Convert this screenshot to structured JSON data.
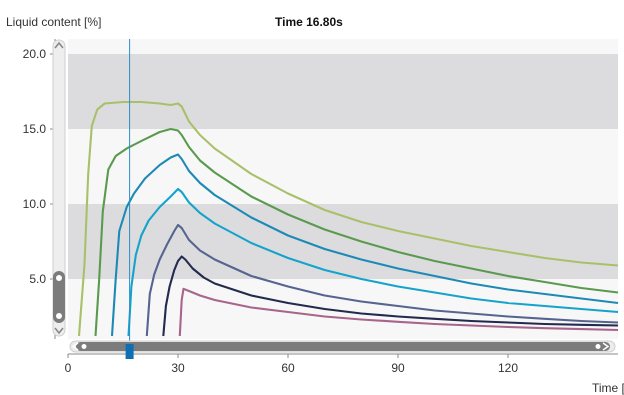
{
  "chart_data": {
    "type": "line",
    "title": "Time 16.80s",
    "ylabel": "Liquid content [%]",
    "xlabel": "Time [",
    "xlim": [
      0,
      150
    ],
    "ylim": [
      1.0,
      21.0
    ],
    "x_ticks": [
      0,
      30,
      60,
      90,
      120
    ],
    "y_ticks": [
      5.0,
      10.0,
      15.0,
      20.0
    ],
    "y_tick_labels": [
      "5.0",
      "10.0",
      "15.0",
      "20.0"
    ],
    "cursor_x": 16.8,
    "grid_bands": [
      [
        5,
        10
      ],
      [
        15,
        20
      ]
    ],
    "series": [
      {
        "color": "#a9c06a",
        "points": [
          [
            3,
            1.2
          ],
          [
            4.5,
            6
          ],
          [
            5.5,
            12
          ],
          [
            6.5,
            15.2
          ],
          [
            8,
            16.3
          ],
          [
            10,
            16.7
          ],
          [
            15,
            16.8
          ],
          [
            20,
            16.8
          ],
          [
            25,
            16.7
          ],
          [
            28,
            16.6
          ],
          [
            30,
            16.7
          ],
          [
            31,
            16.5
          ],
          [
            33,
            15.5
          ],
          [
            36,
            14.6
          ],
          [
            40,
            13.7
          ],
          [
            50,
            12.0
          ],
          [
            60,
            10.7
          ],
          [
            70,
            9.6
          ],
          [
            80,
            8.8
          ],
          [
            90,
            8.2
          ],
          [
            100,
            7.7
          ],
          [
            110,
            7.2
          ],
          [
            120,
            6.8
          ],
          [
            130,
            6.4
          ],
          [
            140,
            6.1
          ],
          [
            150,
            5.9
          ]
        ]
      },
      {
        "color": "#5a9a4e",
        "points": [
          [
            7.5,
            1.2
          ],
          [
            8.5,
            5
          ],
          [
            9.5,
            9.5
          ],
          [
            11,
            12.3
          ],
          [
            13,
            13.2
          ],
          [
            16,
            13.7
          ],
          [
            20,
            14.2
          ],
          [
            25,
            14.8
          ],
          [
            28,
            15.0
          ],
          [
            30,
            14.9
          ],
          [
            31,
            14.6
          ],
          [
            33,
            13.8
          ],
          [
            36,
            12.9
          ],
          [
            40,
            12.1
          ],
          [
            50,
            10.5
          ],
          [
            60,
            9.3
          ],
          [
            70,
            8.3
          ],
          [
            80,
            7.5
          ],
          [
            90,
            6.8
          ],
          [
            100,
            6.2
          ],
          [
            110,
            5.7
          ],
          [
            120,
            5.2
          ],
          [
            130,
            4.8
          ],
          [
            140,
            4.4
          ],
          [
            150,
            4.1
          ]
        ]
      },
      {
        "color": "#1d8ab5",
        "points": [
          [
            12,
            1.2
          ],
          [
            13,
            5
          ],
          [
            14,
            8.2
          ],
          [
            16,
            9.8
          ],
          [
            18,
            10.7
          ],
          [
            21,
            11.7
          ],
          [
            25,
            12.6
          ],
          [
            28,
            13.1
          ],
          [
            30,
            13.3
          ],
          [
            31,
            13.0
          ],
          [
            33,
            12.2
          ],
          [
            36,
            11.4
          ],
          [
            40,
            10.6
          ],
          [
            50,
            9.1
          ],
          [
            60,
            7.9
          ],
          [
            70,
            7.0
          ],
          [
            80,
            6.3
          ],
          [
            90,
            5.7
          ],
          [
            100,
            5.2
          ],
          [
            110,
            4.7
          ],
          [
            120,
            4.3
          ],
          [
            130,
            4.0
          ],
          [
            140,
            3.7
          ],
          [
            150,
            3.4
          ]
        ]
      },
      {
        "color": "#15a3cc",
        "points": [
          [
            16.5,
            1.2
          ],
          [
            17.3,
            4.5
          ],
          [
            18.5,
            6.6
          ],
          [
            20,
            7.9
          ],
          [
            22,
            8.9
          ],
          [
            25,
            9.8
          ],
          [
            28,
            10.5
          ],
          [
            30,
            11.0
          ],
          [
            31,
            10.8
          ],
          [
            33,
            10.1
          ],
          [
            36,
            9.4
          ],
          [
            40,
            8.7
          ],
          [
            50,
            7.4
          ],
          [
            60,
            6.4
          ],
          [
            70,
            5.6
          ],
          [
            80,
            5.0
          ],
          [
            90,
            4.5
          ],
          [
            100,
            4.1
          ],
          [
            110,
            3.7
          ],
          [
            120,
            3.4
          ],
          [
            130,
            3.2
          ],
          [
            140,
            3.0
          ],
          [
            150,
            2.8
          ]
        ]
      },
      {
        "color": "#55658f",
        "points": [
          [
            21.5,
            1.2
          ],
          [
            22.3,
            4.0
          ],
          [
            23.5,
            5.3
          ],
          [
            25,
            6.3
          ],
          [
            27,
            7.3
          ],
          [
            29,
            8.2
          ],
          [
            30,
            8.6
          ],
          [
            31,
            8.4
          ],
          [
            33,
            7.6
          ],
          [
            36,
            6.9
          ],
          [
            40,
            6.3
          ],
          [
            50,
            5.2
          ],
          [
            60,
            4.5
          ],
          [
            70,
            3.9
          ],
          [
            80,
            3.5
          ],
          [
            90,
            3.2
          ],
          [
            100,
            2.9
          ],
          [
            110,
            2.7
          ],
          [
            120,
            2.5
          ],
          [
            130,
            2.35
          ],
          [
            140,
            2.2
          ],
          [
            150,
            2.1
          ]
        ]
      },
      {
        "color": "#222a4d",
        "points": [
          [
            26,
            1.2
          ],
          [
            26.7,
            3.2
          ],
          [
            27.7,
            4.5
          ],
          [
            29,
            5.6
          ],
          [
            30,
            6.2
          ],
          [
            31,
            6.5
          ],
          [
            32,
            6.3
          ],
          [
            34,
            5.7
          ],
          [
            37,
            5.1
          ],
          [
            40,
            4.7
          ],
          [
            50,
            3.9
          ],
          [
            60,
            3.4
          ],
          [
            70,
            3.0
          ],
          [
            80,
            2.7
          ],
          [
            90,
            2.5
          ],
          [
            100,
            2.35
          ],
          [
            110,
            2.2
          ],
          [
            120,
            2.1
          ],
          [
            130,
            2.0
          ],
          [
            140,
            1.95
          ],
          [
            150,
            1.9
          ]
        ]
      },
      {
        "color": "#a8648a",
        "points": [
          [
            30.5,
            1.2
          ],
          [
            31,
            3.6
          ],
          [
            31.5,
            4.35
          ],
          [
            33,
            4.2
          ],
          [
            36,
            3.9
          ],
          [
            40,
            3.6
          ],
          [
            50,
            3.1
          ],
          [
            60,
            2.8
          ],
          [
            70,
            2.5
          ],
          [
            80,
            2.3
          ],
          [
            90,
            2.15
          ],
          [
            100,
            2.0
          ],
          [
            110,
            1.9
          ],
          [
            120,
            1.8
          ],
          [
            130,
            1.72
          ],
          [
            140,
            1.66
          ],
          [
            150,
            1.6
          ]
        ]
      }
    ]
  }
}
